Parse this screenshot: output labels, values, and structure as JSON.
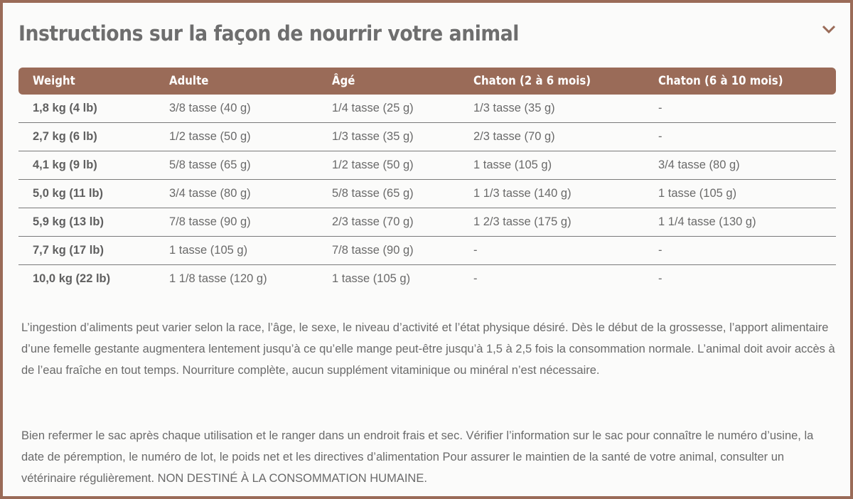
{
  "title": "Instructions sur la façon de nourrir votre animal",
  "accent_color": "#9a6b58",
  "toggle_icon": "chevron-down-icon",
  "table": {
    "headers": [
      "Weight",
      "Adulte",
      "Âgé",
      "Chaton (2 à 6 mois)",
      "Chaton (6 à 10 mois)"
    ],
    "rows": [
      [
        "1,8 kg (4 lb)",
        "3/8 tasse (40 g)",
        "1/4 tasse (25 g)",
        "1/3 tasse (35 g)",
        "-"
      ],
      [
        "2,7 kg (6 lb)",
        "1/2 tasse (50 g)",
        "1/3 tasse (35 g)",
        "2/3 tasse (70 g)",
        "-"
      ],
      [
        "4,1 kg (9 lb)",
        "5/8 tasse (65 g)",
        "1/2 tasse (50 g)",
        "1 tasse (105 g)",
        "3/4 tasse (80 g)"
      ],
      [
        "5,0 kg (11 lb)",
        "3/4 tasse (80 g)",
        "5/8 tasse (65 g)",
        "1 1/3 tasse (140 g)",
        "1 tasse (105 g)"
      ],
      [
        "5,9 kg (13 lb)",
        "7/8 tasse (90 g)",
        "2/3 tasse (70 g)",
        "1 2/3 tasse (175 g)",
        "1 1/4 tasse (130 g)"
      ],
      [
        "7,7 kg (17 lb)",
        "1 tasse (105 g)",
        "7/8 tasse (90 g)",
        "-",
        "-"
      ],
      [
        "10,0 kg (22 lb)",
        "1 1/8 tasse (120 g)",
        "1 tasse (105 g)",
        "-",
        "-"
      ]
    ]
  },
  "paragraphs": [
    "L’ingestion d’aliments peut varier selon la race, l’âge, le sexe, le niveau d’activité et l’état physique désiré. Dès le début de la grossesse, l’apport alimentaire d’une femelle gestante augmentera lentement jusqu’à ce qu’elle mange peut-être jusqu’à 1,5 à 2,5 fois la consommation normale. L’animal doit avoir accès à de l’eau fraîche en tout temps. Nourriture complète, aucun supplément vitaminique ou minéral n’est nécessaire.",
    "Bien refermer le sac après chaque utilisation et le ranger dans un endroit frais et sec. Vérifier l’information sur le sac pour connaître le numéro d’usine, la date de péremption, le numéro de lot, le poids net et les directives d’alimentation Pour assurer le maintien de la santé de votre animal, consulter un vétérinaire régulièrement. NON DESTINÉ À LA CONSOMMATION HUMAINE."
  ]
}
